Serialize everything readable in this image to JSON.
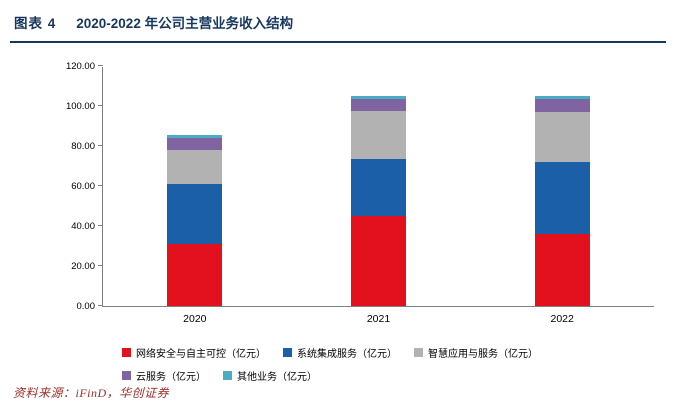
{
  "header": {
    "label": "图表 4",
    "title": "2020-2022 年公司主营业务收入结构"
  },
  "colors": {
    "title_navy": "#17375e",
    "axis_gray": "#808080",
    "source_red": "#a02c2a"
  },
  "chart_data": {
    "type": "bar",
    "stacked": true,
    "title": "2020-2022 年公司主营业务收入结构",
    "categories": [
      "2020",
      "2021",
      "2022"
    ],
    "series": [
      {
        "name": "网络安全与自主可控（亿元）",
        "color": "#e3101e",
        "values": [
          31,
          45,
          36
        ]
      },
      {
        "name": "系统集成服务（亿元）",
        "color": "#1c5fa9",
        "values": [
          30,
          28.5,
          36
        ]
      },
      {
        "name": "智慧应用与服务（亿元）",
        "color": "#b2b2b2",
        "values": [
          17,
          24,
          25
        ]
      },
      {
        "name": "云服务（亿元）",
        "color": "#8064a2",
        "values": [
          6,
          6,
          6.5
        ]
      },
      {
        "name": "其他业务（亿元）",
        "color": "#4bacc6",
        "values": [
          1.5,
          1.5,
          1.5
        ]
      }
    ],
    "xlabel": "",
    "ylabel": "",
    "ylim": [
      0,
      120
    ],
    "ytick_interval": 20,
    "ytick_labels": [
      "0.00",
      "20.00",
      "40.00",
      "60.00",
      "80.00",
      "100.00",
      "120.00"
    ],
    "grid": false,
    "legend_position": "bottom",
    "legend_rows": [
      3,
      2
    ]
  },
  "footer": {
    "source": "资料来源：iFinD，华创证券"
  }
}
